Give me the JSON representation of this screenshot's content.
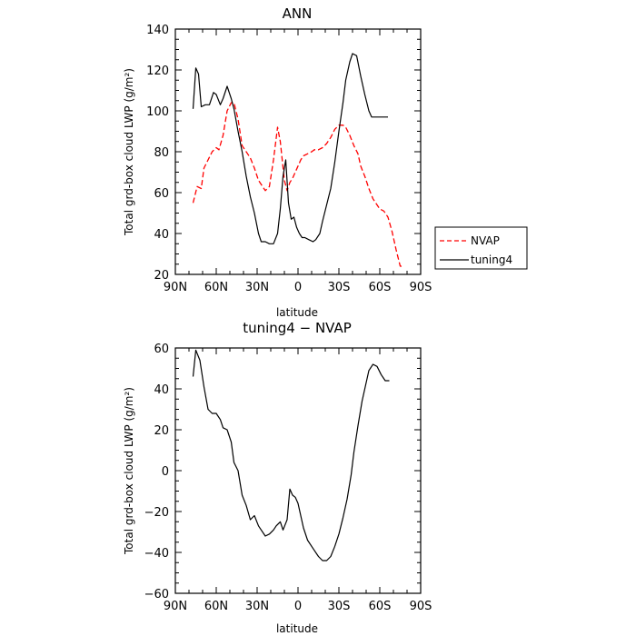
{
  "chart_data": [
    {
      "type": "line",
      "title": "ANN",
      "xlabel": "latitude",
      "ylabel": "Total grd-box cloud LWP (g/m²)",
      "x_tick_labels": [
        "90N",
        "60N",
        "30N",
        "0",
        "30S",
        "60S",
        "90S"
      ],
      "x_tick_values": [
        90,
        60,
        30,
        0,
        -30,
        -60,
        -90
      ],
      "xlim": [
        90,
        -90
      ],
      "ylim": [
        20,
        140
      ],
      "y_ticks": [
        20,
        40,
        60,
        80,
        100,
        120,
        140
      ],
      "legend": {
        "placement": "right"
      },
      "series": [
        {
          "name": "NVAP",
          "color": "#ff0000",
          "style": "dashed",
          "x": [
            77,
            74,
            71,
            69,
            66,
            63,
            60,
            58,
            55,
            52,
            49,
            47,
            44,
            41,
            38,
            35,
            32,
            29,
            27,
            24,
            21,
            18,
            15,
            13,
            10,
            8,
            6,
            4,
            2,
            0,
            -2,
            -4,
            -7,
            -10,
            -12,
            -15,
            -18,
            -21,
            -24,
            -27,
            -30,
            -33,
            -35,
            -38,
            -41,
            -44,
            -46,
            -49,
            -52,
            -55,
            -57,
            -60,
            -63,
            -66,
            -69,
            -72,
            -75,
            -77
          ],
          "y": [
            55,
            63,
            62,
            72,
            76,
            80,
            82,
            81,
            88,
            100,
            104,
            104,
            96,
            83,
            80,
            77,
            72,
            66,
            64,
            61,
            63,
            76,
            92,
            85,
            66,
            61,
            65,
            67,
            70,
            73,
            76,
            78,
            79,
            80,
            81,
            81,
            82,
            84,
            87,
            91,
            93,
            93,
            92,
            88,
            83,
            79,
            73,
            68,
            62,
            57,
            55,
            52,
            51,
            48,
            41,
            32,
            24,
            24
          ]
        },
        {
          "name": "tuning4",
          "color": "#000000",
          "style": "solid",
          "x": [
            77,
            75,
            73,
            71,
            68,
            65,
            62,
            60,
            57,
            55,
            52,
            49,
            47,
            44,
            41,
            38,
            35,
            32,
            29,
            27,
            24,
            21,
            18,
            15,
            13,
            11,
            9,
            7,
            5,
            3,
            1,
            -1,
            -3,
            -5,
            -8,
            -11,
            -13,
            -16,
            -18,
            -21,
            -24,
            -27,
            -30,
            -33,
            -35,
            -38,
            -40,
            -43,
            -46,
            -49,
            -52,
            -54,
            -57,
            -60,
            -63,
            -66
          ],
          "y": [
            101,
            121,
            118,
            102,
            103,
            103,
            109,
            108,
            103,
            106,
            112,
            106,
            101,
            90,
            80,
            68,
            58,
            50,
            40,
            36,
            36,
            35,
            35,
            40,
            52,
            68,
            76,
            55,
            47,
            48,
            43,
            40,
            38,
            38,
            37,
            36,
            37,
            40,
            46,
            54,
            62,
            75,
            90,
            104,
            115,
            124,
            128,
            127,
            117,
            108,
            100,
            97,
            97,
            97,
            97,
            97
          ]
        }
      ]
    },
    {
      "type": "line",
      "title": "tuning4 − NVAP",
      "xlabel": "latitude",
      "ylabel": "Total grd-box cloud LWP (g/m²)",
      "x_tick_labels": [
        "90N",
        "60N",
        "30N",
        "0",
        "30S",
        "60S",
        "90S"
      ],
      "x_tick_values": [
        90,
        60,
        30,
        0,
        -30,
        -60,
        -90
      ],
      "xlim": [
        90,
        -90
      ],
      "ylim": [
        -60,
        60
      ],
      "y_ticks": [
        -60,
        -40,
        -20,
        0,
        20,
        40,
        60
      ],
      "series": [
        {
          "color": "#000000",
          "style": "solid",
          "x": [
            77,
            75,
            72,
            69,
            66,
            63,
            60,
            57,
            55,
            52,
            49,
            47,
            44,
            41,
            38,
            35,
            32,
            29,
            27,
            24,
            21,
            18,
            16,
            13,
            11,
            8,
            6,
            4,
            2,
            0,
            -2,
            -4,
            -7,
            -10,
            -12,
            -15,
            -18,
            -21,
            -24,
            -27,
            -30,
            -33,
            -36,
            -39,
            -41,
            -44,
            -47,
            -50,
            -52,
            -55,
            -58,
            -61,
            -64,
            -67
          ],
          "y": [
            46,
            59,
            54,
            41,
            30,
            28,
            28,
            25,
            21,
            20,
            14,
            4,
            0,
            -12,
            -17,
            -24,
            -22,
            -27,
            -29,
            -32,
            -31,
            -29,
            -27,
            -25,
            -29,
            -24,
            -9,
            -12,
            -13,
            -16,
            -22,
            -28,
            -34,
            -37,
            -39,
            -42,
            -44,
            -44,
            -42,
            -37,
            -31,
            -23,
            -14,
            -2,
            9,
            22,
            34,
            43,
            49,
            52,
            51,
            47,
            44,
            44
          ]
        }
      ]
    }
  ]
}
